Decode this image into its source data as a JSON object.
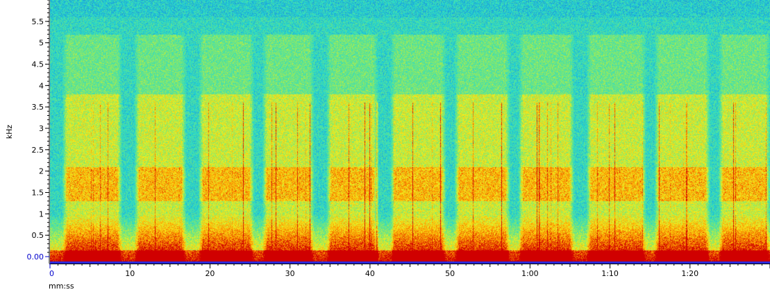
{
  "chart_data": {
    "type": "heatmap",
    "kind": "spectrogram",
    "xlabel": "mm:ss",
    "ylabel": "kHz",
    "xlim_seconds": [
      0,
      90
    ],
    "ylim_khz": [
      0,
      6
    ],
    "x_ticks": [
      {
        "t": 0,
        "label": "0"
      },
      {
        "t": 10,
        "label": "10"
      },
      {
        "t": 20,
        "label": "20"
      },
      {
        "t": 30,
        "label": "30"
      },
      {
        "t": 40,
        "label": "40"
      },
      {
        "t": 50,
        "label": "50"
      },
      {
        "t": 60,
        "label": "1:00"
      },
      {
        "t": 70,
        "label": "1:10"
      },
      {
        "t": 80,
        "label": "1:20"
      }
    ],
    "y_ticks": [
      {
        "v": 0.0,
        "label": "0.00"
      },
      {
        "v": 0.5,
        "label": "0.5"
      },
      {
        "v": 1.0,
        "label": "1"
      },
      {
        "v": 1.5,
        "label": "1.5"
      },
      {
        "v": 2.0,
        "label": "2"
      },
      {
        "v": 2.5,
        "label": "2.5"
      },
      {
        "v": 3.0,
        "label": "3"
      },
      {
        "v": 3.5,
        "label": "3.5"
      },
      {
        "v": 4.0,
        "label": "4"
      },
      {
        "v": 4.5,
        "label": "4.5"
      },
      {
        "v": 5.0,
        "label": "5"
      },
      {
        "v": 5.5,
        "label": "5.5"
      }
    ],
    "colors": {
      "background": "#24d8d0",
      "noise_dark": "#1a7ee0",
      "low": "#7ee870",
      "mid": "#f0f020",
      "high": "#ff9a00",
      "peak": "#d00000",
      "axis_blue": "#0000cc",
      "ruler_blue": "#2a2ae0"
    },
    "bursts": [
      {
        "start": 1.5,
        "end": 9.0
      },
      {
        "start": 10.5,
        "end": 17.0
      },
      {
        "start": 18.5,
        "end": 25.5
      },
      {
        "start": 26.5,
        "end": 33.0
      },
      {
        "start": 34.5,
        "end": 41.0
      },
      {
        "start": 42.5,
        "end": 49.5
      },
      {
        "start": 50.5,
        "end": 57.5
      },
      {
        "start": 58.5,
        "end": 65.5
      },
      {
        "start": 67.0,
        "end": 74.5
      },
      {
        "start": 75.5,
        "end": 82.5
      },
      {
        "start": 83.5,
        "end": 90.0
      }
    ]
  }
}
